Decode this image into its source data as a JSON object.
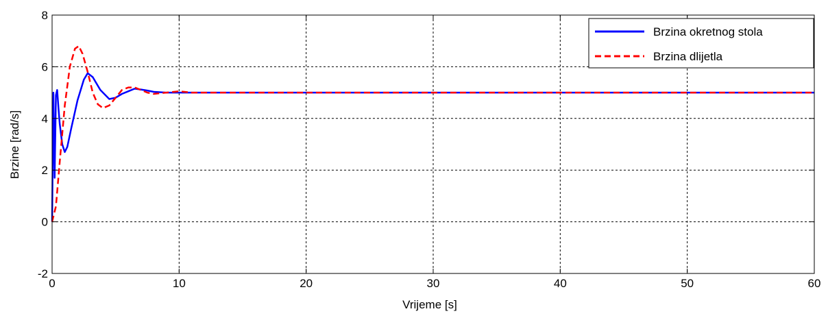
{
  "chart_data": {
    "type": "line",
    "xlabel": "Vrijeme [s]",
    "ylabel": "Brzine [rad/s]",
    "xlim": [
      0,
      60
    ],
    "ylim": [
      -2,
      8
    ],
    "xticks": [
      0,
      10,
      20,
      30,
      40,
      50,
      60
    ],
    "yticks": [
      -2,
      0,
      2,
      4,
      6,
      8
    ],
    "grid": true,
    "grid_style": "dashed",
    "legend_position": "top-right",
    "series": [
      {
        "name": "Brzina okretnog stola",
        "color": "#0000ff",
        "line_style": "solid",
        "x": [
          0,
          0.1,
          0.2,
          0.3,
          0.4,
          0.5,
          0.6,
          0.8,
          1.0,
          1.2,
          1.5,
          2.0,
          2.5,
          2.8,
          3.2,
          3.8,
          4.5,
          5.0,
          5.5,
          6.0,
          6.5,
          7.0,
          7.5,
          8.0,
          9.0,
          10.0,
          12.0,
          15.0,
          20.0,
          30.0,
          40.0,
          50.0,
          60.0
        ],
        "y": [
          0.0,
          5.0,
          1.7,
          4.9,
          5.1,
          4.4,
          3.8,
          3.0,
          2.7,
          2.9,
          3.6,
          4.7,
          5.5,
          5.75,
          5.6,
          5.1,
          4.75,
          4.8,
          4.95,
          5.05,
          5.15,
          5.12,
          5.08,
          5.03,
          5.0,
          5.0,
          5.0,
          5.0,
          5.0,
          5.0,
          5.0,
          5.0,
          5.0
        ]
      },
      {
        "name": "Brzina dlijetla",
        "color": "#ff0000",
        "line_style": "dashed",
        "x": [
          0,
          0.3,
          0.6,
          1.0,
          1.4,
          1.8,
          2.1,
          2.4,
          2.8,
          3.2,
          3.6,
          4.0,
          4.5,
          5.0,
          5.5,
          6.0,
          6.5,
          7.0,
          7.5,
          8.0,
          9.0,
          10.0,
          11.0,
          12.0,
          15.0,
          20.0,
          30.0,
          40.0,
          50.0,
          60.0
        ],
        "y": [
          0.0,
          0.6,
          2.3,
          4.5,
          6.0,
          6.7,
          6.8,
          6.5,
          5.8,
          5.0,
          4.55,
          4.4,
          4.5,
          4.8,
          5.1,
          5.2,
          5.2,
          5.1,
          5.0,
          4.95,
          5.0,
          5.05,
          5.0,
          5.0,
          5.0,
          5.0,
          5.0,
          5.0,
          5.0,
          5.0
        ]
      }
    ]
  }
}
